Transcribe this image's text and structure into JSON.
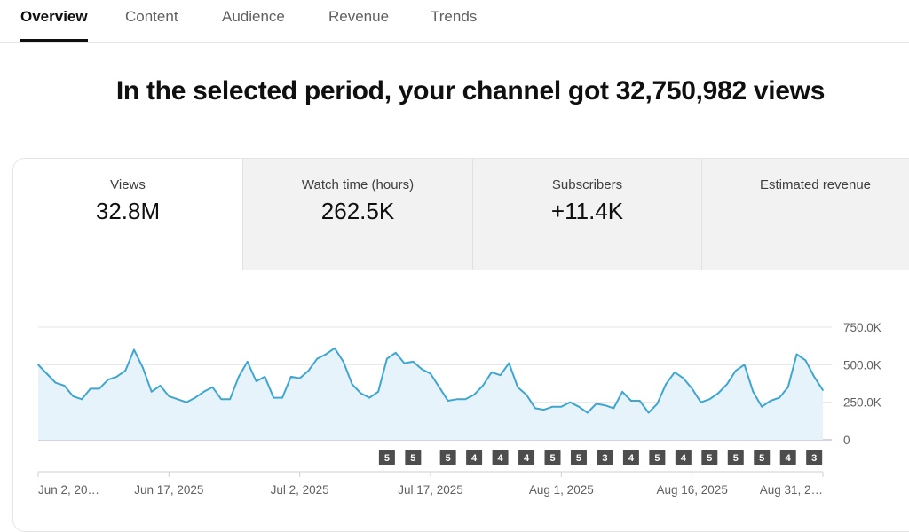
{
  "tabs": [
    {
      "label": "Overview",
      "active": true
    },
    {
      "label": "Content",
      "active": false
    },
    {
      "label": "Audience",
      "active": false
    },
    {
      "label": "Revenue",
      "active": false
    },
    {
      "label": "Trends",
      "active": false
    }
  ],
  "headline": "In the selected period, your channel got 32,750,982 views",
  "metrics": [
    {
      "label": "Views",
      "value": "32.8M",
      "selected": true
    },
    {
      "label": "Watch time (hours)",
      "value": "262.5K",
      "selected": false
    },
    {
      "label": "Subscribers",
      "value": "+11.4K",
      "selected": false
    },
    {
      "label": "Estimated revenue",
      "value": "",
      "selected": false
    }
  ],
  "colors": {
    "line": "#3ea6d1",
    "area": "#e6f3fa",
    "badge": "#4d4d4d"
  },
  "chart_data": {
    "type": "area",
    "title": "",
    "xlabel": "",
    "ylabel": "",
    "ylim": [
      0,
      750000
    ],
    "y_tick_labels": [
      "0",
      "250.0K",
      "500.0K",
      "750.0K"
    ],
    "x_tick_labels": [
      "Jun 2, 20…",
      "Jun 17, 2025",
      "Jul 2, 2025",
      "Jul 17, 2025",
      "Aug 1, 2025",
      "Aug 16, 2025",
      "Aug 31, 2…"
    ],
    "x_tick_index": [
      0,
      15,
      30,
      45,
      60,
      75,
      90
    ],
    "grid": true,
    "series": [
      {
        "values": [
          500000,
          440000,
          380000,
          360000,
          290000,
          270000,
          340000,
          340000,
          400000,
          420000,
          460000,
          600000,
          480000,
          320000,
          360000,
          290000,
          270000,
          250000,
          280000,
          320000,
          350000,
          270000,
          270000,
          420000,
          520000,
          390000,
          420000,
          280000,
          280000,
          420000,
          410000,
          460000,
          540000,
          570000,
          610000,
          520000,
          370000,
          310000,
          280000,
          320000,
          540000,
          580000,
          510000,
          520000,
          470000,
          440000,
          350000,
          260000,
          270000,
          270000,
          300000,
          360000,
          450000,
          430000,
          510000,
          350000,
          300000,
          210000,
          200000,
          220000,
          220000,
          250000,
          220000,
          180000,
          240000,
          230000,
          210000,
          320000,
          260000,
          260000,
          180000,
          240000,
          370000,
          450000,
          410000,
          340000,
          250000,
          270000,
          310000,
          370000,
          460000,
          500000,
          320000,
          220000,
          260000,
          280000,
          350000,
          570000,
          530000,
          420000,
          330000
        ]
      }
    ],
    "annotations": [
      {
        "index": 40,
        "label": "5"
      },
      {
        "index": 43,
        "label": "5"
      },
      {
        "index": 47,
        "label": "5"
      },
      {
        "index": 50,
        "label": "4"
      },
      {
        "index": 53,
        "label": "4"
      },
      {
        "index": 56,
        "label": "4"
      },
      {
        "index": 59,
        "label": "5"
      },
      {
        "index": 62,
        "label": "5"
      },
      {
        "index": 65,
        "label": "3"
      },
      {
        "index": 68,
        "label": "4"
      },
      {
        "index": 71,
        "label": "5"
      },
      {
        "index": 74,
        "label": "4"
      },
      {
        "index": 77,
        "label": "5"
      },
      {
        "index": 80,
        "label": "5"
      },
      {
        "index": 83,
        "label": "5"
      },
      {
        "index": 86,
        "label": "4"
      },
      {
        "index": 89,
        "label": "3"
      }
    ]
  }
}
